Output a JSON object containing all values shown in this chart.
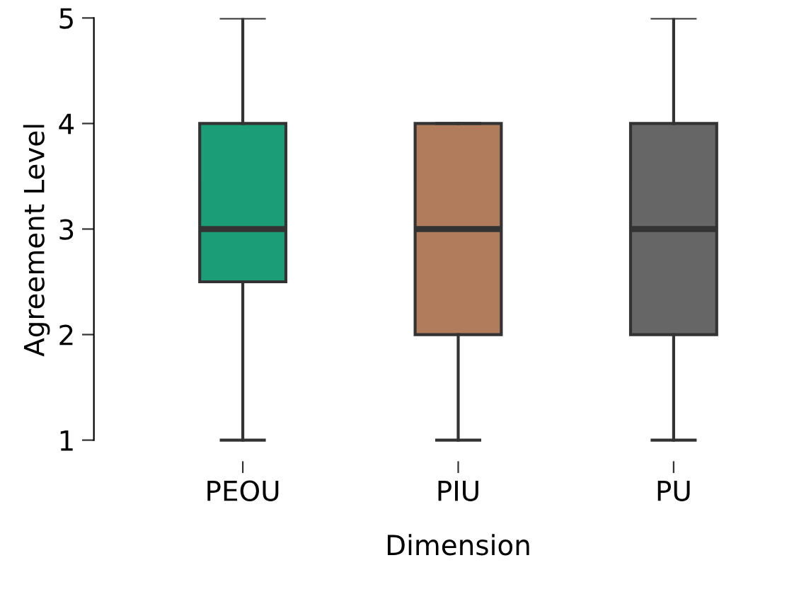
{
  "chart_data": {
    "type": "box",
    "xlabel": "Dimension",
    "ylabel": "Agreement Level",
    "categories": [
      "PEOU",
      "PIU",
      "PU"
    ],
    "boxes": [
      {
        "low": 1,
        "q1": 2.5,
        "median": 3,
        "q3": 4,
        "high": 5
      },
      {
        "low": 1,
        "q1": 2,
        "median": 3,
        "q3": 4,
        "high": 4
      },
      {
        "low": 1,
        "q1": 2,
        "median": 3,
        "q3": 4,
        "high": 5
      }
    ],
    "colors": [
      "#1b9e77",
      "#b07c5c",
      "#666666"
    ],
    "ylim": [
      1,
      5
    ],
    "yticks": [
      1,
      2,
      3,
      4,
      5
    ],
    "grid": false,
    "legend": false
  }
}
